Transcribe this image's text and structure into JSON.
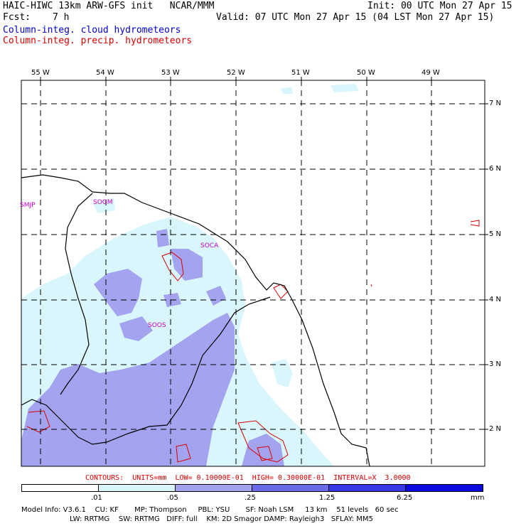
{
  "header": {
    "model_title": "HAIC-HIWC 13km ARW-GFS init   NCAR/MMM",
    "init_text": "Init: 00 UTC Mon 27 Apr 15",
    "fcst_label": "Fcst:",
    "fcst_value": "7 h",
    "valid_text": "Valid: 07 UTC Mon 27 Apr 15 (04 LST Mon 27 Apr 15)",
    "field1": "Column-integ. cloud hydrometeors",
    "field2": "Column-integ. precip. hydrometeors",
    "field1_color": "#0000cc",
    "field2_color": "#dd0000"
  },
  "map": {
    "longitude_labels": [
      "55 W",
      "54 W",
      "53 W",
      "52 W",
      "51 W",
      "50 W",
      "49 W"
    ],
    "latitude_labels": [
      "7 N",
      "6 N",
      "5 N",
      "4 N",
      "3 N",
      "2 N"
    ],
    "stations": [
      "SMJP",
      "SOGM",
      "SOCA",
      "SOOS"
    ],
    "colors": {
      "shade_light": "#d8f6fb",
      "shade_medium": "#a3a3f0",
      "coast": "#000000",
      "contour": "#dd0000",
      "station": "#cc00cc"
    }
  },
  "contours_line": "CONTOURS:  UNITS=mm  LOW= 0.10000E-01  HIGH= 0.30000E-01  INTERVAL=X  3.0000",
  "legend": {
    "ticks": [
      ".01",
      ".05",
      ".25",
      "1.25",
      "6.25"
    ],
    "unit": "mm",
    "colors": [
      "#ffffff",
      "#d8f6fb",
      "#a3a3f0",
      "#6b6bea",
      "#3838e6",
      "#0a0adf"
    ]
  },
  "model_info": {
    "line1": "Model Info: V3.6.1    CU: KF       MP: Thompson     PBL: YSU       SF: Noah LSM     13 km    51 levels   60 sec",
    "line2": "LW: RRTMG    SW: RRTMG   DIFF: full    KM: 2D Smagor DAMP: Rayleigh3   SFLAY: MM5"
  }
}
